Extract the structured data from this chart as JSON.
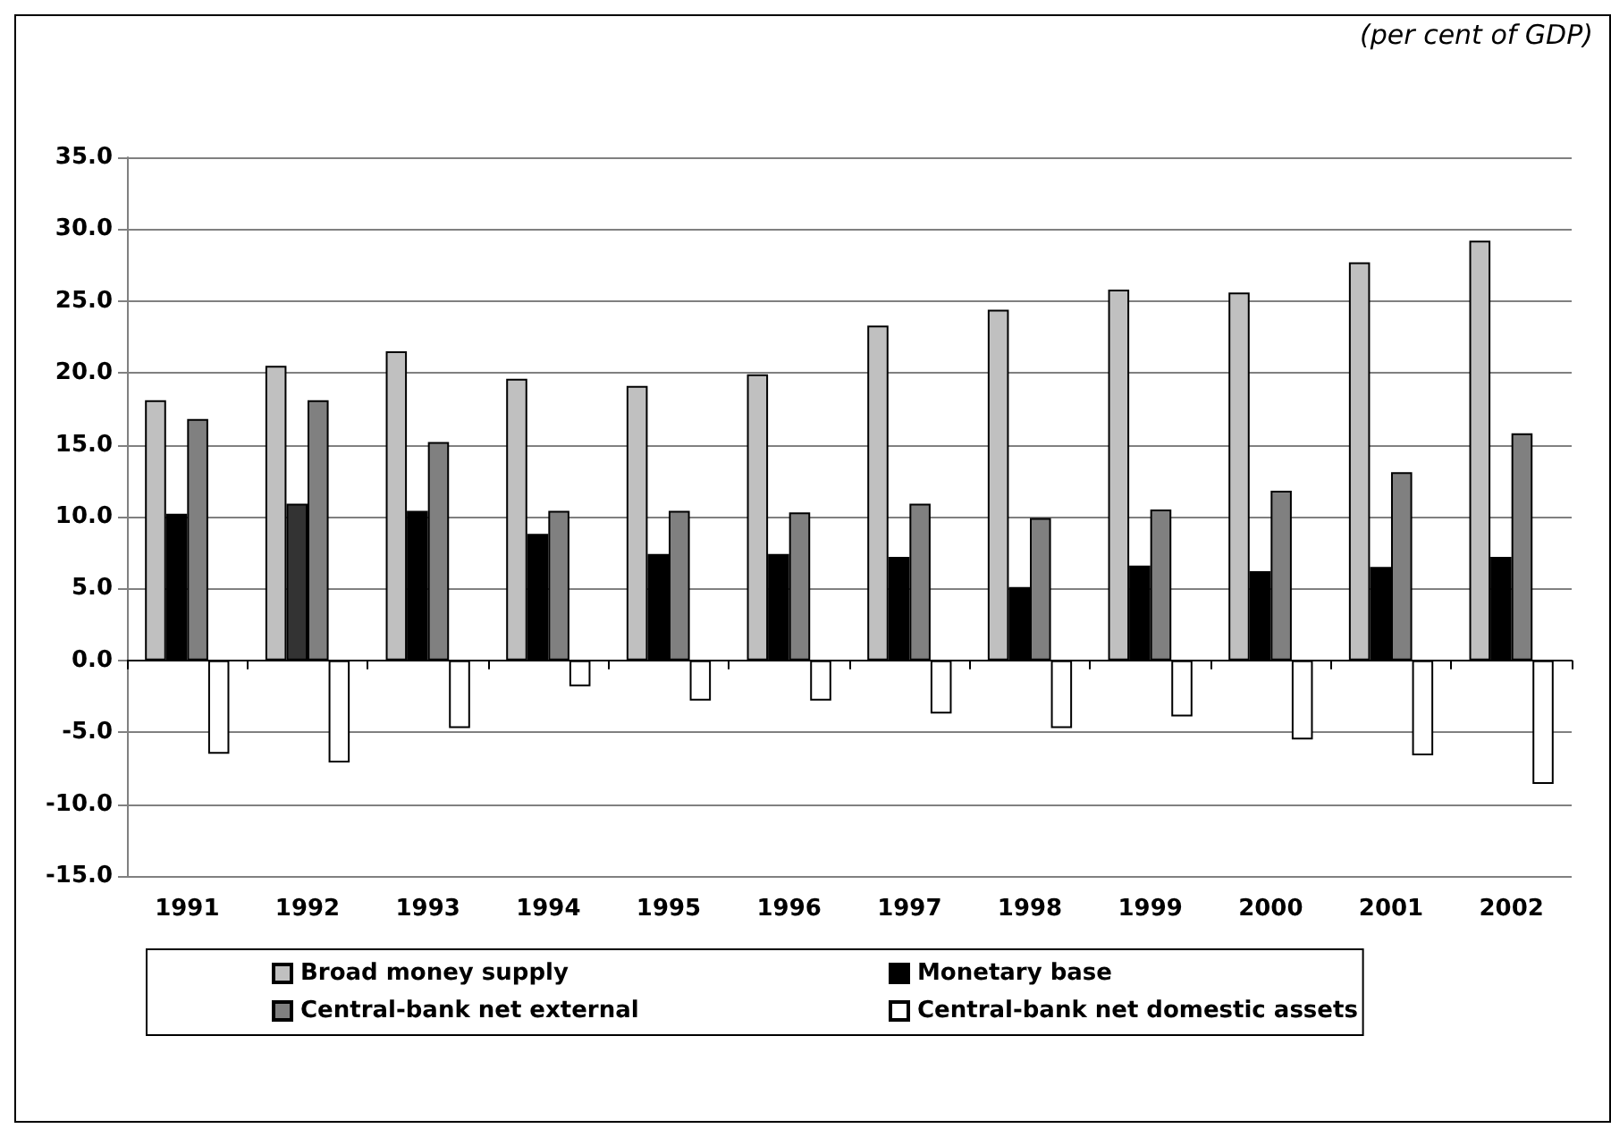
{
  "chart_data": {
    "type": "bar",
    "subtitle": "(per cent of GDP)",
    "categories": [
      "1991",
      "1992",
      "1993",
      "1994",
      "1995",
      "1996",
      "1997",
      "1998",
      "1999",
      "2000",
      "2001",
      "2002"
    ],
    "series": [
      {
        "name": "Broad money supply",
        "color": "#c0c0c0",
        "values": [
          18.1,
          20.5,
          21.5,
          19.6,
          19.1,
          19.9,
          23.3,
          24.4,
          25.8,
          25.6,
          27.7,
          29.2
        ]
      },
      {
        "name": "Monetary base",
        "color": "#000000",
        "colors": [
          "#000000",
          "#333333",
          "#000000",
          "#000000",
          "#000000",
          "#000000",
          "#000000",
          "#000000",
          "#000000",
          "#000000",
          "#000000",
          "#000000"
        ],
        "values": [
          10.2,
          10.9,
          10.4,
          8.8,
          7.4,
          7.4,
          7.2,
          5.1,
          6.6,
          6.2,
          6.5,
          7.2
        ]
      },
      {
        "name": "Central-bank net external",
        "color": "#808080",
        "values": [
          16.8,
          18.1,
          15.2,
          10.4,
          10.4,
          10.3,
          10.9,
          9.9,
          10.5,
          11.8,
          13.1,
          15.8
        ]
      },
      {
        "name": "Central-bank net domestic assets",
        "color": "#ffffff",
        "values": [
          -6.5,
          -7.1,
          -4.7,
          -1.8,
          -2.8,
          -2.8,
          -3.7,
          -4.7,
          -3.9,
          -5.5,
          -6.6,
          -8.6
        ]
      }
    ],
    "ylim": [
      -15,
      35
    ],
    "yticks": [
      {
        "value": -15,
        "label": "-15.0"
      },
      {
        "value": -10,
        "label": "-10.0"
      },
      {
        "value": -5,
        "label": "-5.0"
      },
      {
        "value": 0,
        "label": "0.0"
      },
      {
        "value": 5,
        "label": "5.0"
      },
      {
        "value": 10,
        "label": "10.0"
      },
      {
        "value": 15,
        "label": "15.0"
      },
      {
        "value": 20,
        "label": "20.0"
      },
      {
        "value": 25,
        "label": "25.0"
      },
      {
        "value": 30,
        "label": "30.0"
      },
      {
        "value": 35,
        "label": "35.0"
      }
    ],
    "grid": "y",
    "legend": "bottom"
  }
}
